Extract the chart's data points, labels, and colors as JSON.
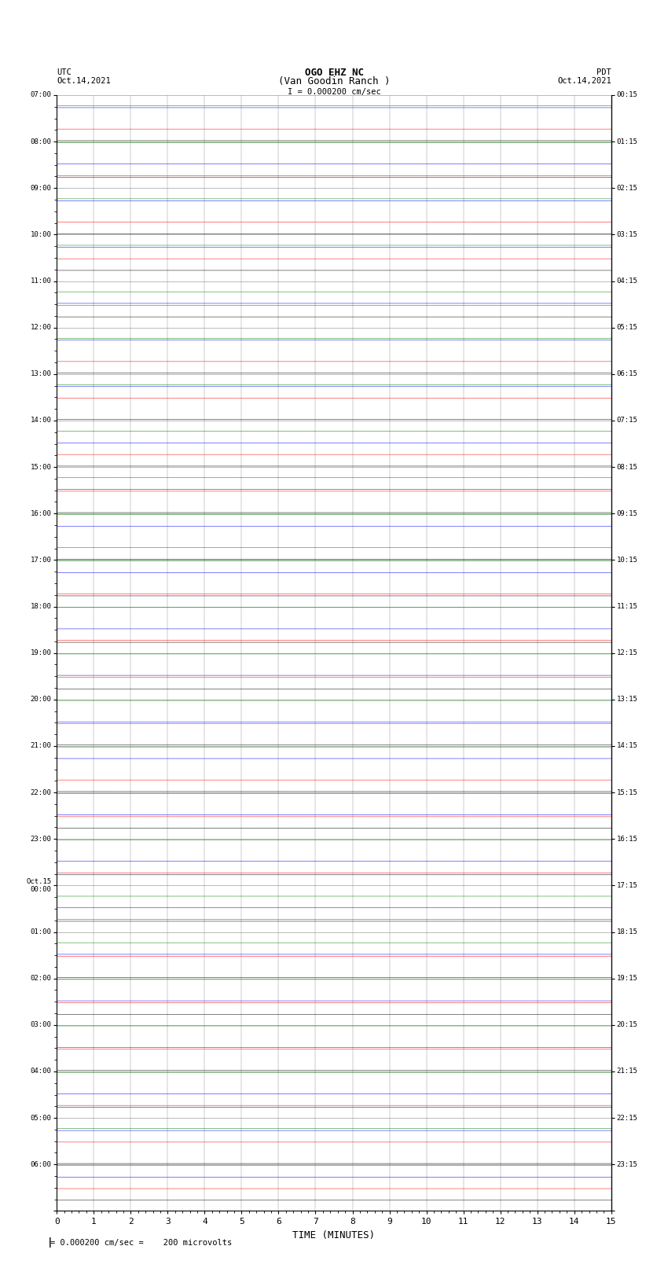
{
  "title_line1": "OGO EHZ NC",
  "title_line2": "(Van Goodin Ranch )",
  "scale_label": "I = 0.000200 cm/sec",
  "footer_label": "= 0.000200 cm/sec =    200 microvolts",
  "utc_label": "UTC",
  "utc_date": "Oct.14,2021",
  "pdt_label": "PDT",
  "pdt_date": "Oct.14,2021",
  "xlabel": "TIME (MINUTES)",
  "left_times": [
    "07:00",
    "08:00",
    "09:00",
    "10:00",
    "11:00",
    "12:00",
    "13:00",
    "14:00",
    "15:00",
    "16:00",
    "17:00",
    "18:00",
    "19:00",
    "20:00",
    "21:00",
    "22:00",
    "23:00",
    "Oct.15\n00:00",
    "01:00",
    "02:00",
    "03:00",
    "04:00",
    "05:00",
    "06:00"
  ],
  "right_times": [
    "00:15",
    "01:15",
    "02:15",
    "03:15",
    "04:15",
    "05:15",
    "06:15",
    "07:15",
    "08:15",
    "09:15",
    "10:15",
    "11:15",
    "12:15",
    "13:15",
    "14:15",
    "15:15",
    "16:15",
    "17:15",
    "18:15",
    "19:15",
    "20:15",
    "21:15",
    "22:15",
    "23:15"
  ],
  "n_rows": 24,
  "n_traces_per_row": 4,
  "colors": [
    "black",
    "red",
    "blue",
    "green"
  ],
  "bg_color": "white",
  "grid_color": "#888888",
  "x_ticks": [
    0,
    1,
    2,
    3,
    4,
    5,
    6,
    7,
    8,
    9,
    10,
    11,
    12,
    13,
    14,
    15
  ],
  "figsize": [
    8.5,
    16.13
  ],
  "dpi": 100,
  "samples_per_row": 2700,
  "base_amp": 0.025,
  "high_amp": 0.38,
  "med_amp": 0.12
}
